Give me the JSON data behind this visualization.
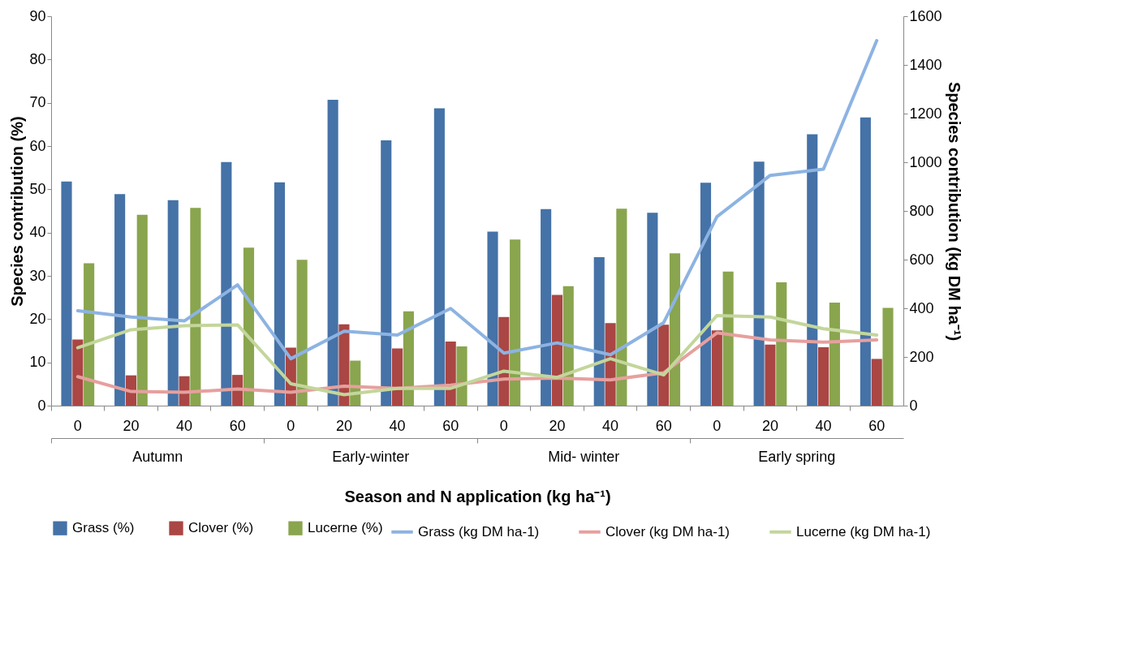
{
  "chart_data": {
    "type": "bar",
    "xlabel": "Season and N application (kg ha⁻¹)",
    "ylabel": "Species contribution (%)",
    "y2label": "Species contribution (kg DM ha⁻¹)",
    "categories": [
      "0",
      "20",
      "40",
      "60",
      "0",
      "20",
      "40",
      "60",
      "0",
      "20",
      "40",
      "60",
      "0",
      "20",
      "40",
      "60"
    ],
    "annotations": [
      "Autumn",
      "Early-winter",
      "Mid- winter",
      "Early spring"
    ],
    "ylim": [
      0,
      90
    ],
    "yticks": [
      0,
      10,
      20,
      30,
      40,
      50,
      60,
      70,
      80,
      90
    ],
    "y2lim": [
      0,
      1600
    ],
    "y2ticks": [
      0,
      200,
      400,
      600,
      800,
      1000,
      1200,
      1400,
      1600
    ],
    "legend": "bottom",
    "series": [
      {
        "name": "Grass (%)",
        "color": "#4572a7",
        "values": [
          51.8,
          48.9,
          47.5,
          56.3,
          51.6,
          70.7,
          61.3,
          68.7,
          40.2,
          45.4,
          34.3,
          44.6,
          51.5,
          56.4,
          62.7,
          66.6
        ]
      },
      {
        "name": "Clover (%)",
        "color": "#aa4643",
        "values": [
          15.3,
          7.0,
          6.8,
          7.1,
          13.4,
          18.8,
          13.2,
          14.8,
          20.5,
          25.6,
          19.1,
          18.7,
          17.4,
          14.1,
          13.5,
          10.8
        ]
      },
      {
        "name": "Lucerne (%)",
        "color": "#89a54e",
        "values": [
          32.9,
          44.1,
          45.7,
          36.5,
          33.7,
          10.4,
          21.8,
          13.7,
          38.4,
          27.6,
          45.5,
          35.2,
          31.0,
          28.5,
          23.8,
          22.6
        ]
      },
      {
        "name": "Grass (kg DM ha-1)",
        "type": "line",
        "axis": "y2",
        "color": "#8db3e2",
        "values": [
          390,
          364,
          348,
          496,
          193,
          306,
          290,
          399,
          216,
          258,
          209,
          341,
          776,
          946,
          972,
          1500
        ]
      },
      {
        "name": "Clover (kg DM ha-1)",
        "type": "line",
        "axis": "y2",
        "color": "#e6a09e",
        "values": [
          119,
          58,
          55,
          68,
          55,
          80,
          71,
          84,
          109,
          113,
          106,
          135,
          299,
          270,
          261,
          270
        ]
      },
      {
        "name": "Lucerne (kg DM ha-1)",
        "type": "line",
        "axis": "y2",
        "color": "#c3d69b",
        "values": [
          238,
          312,
          328,
          332,
          90,
          45,
          71,
          71,
          142,
          116,
          193,
          126,
          370,
          364,
          316,
          290
        ]
      }
    ]
  }
}
